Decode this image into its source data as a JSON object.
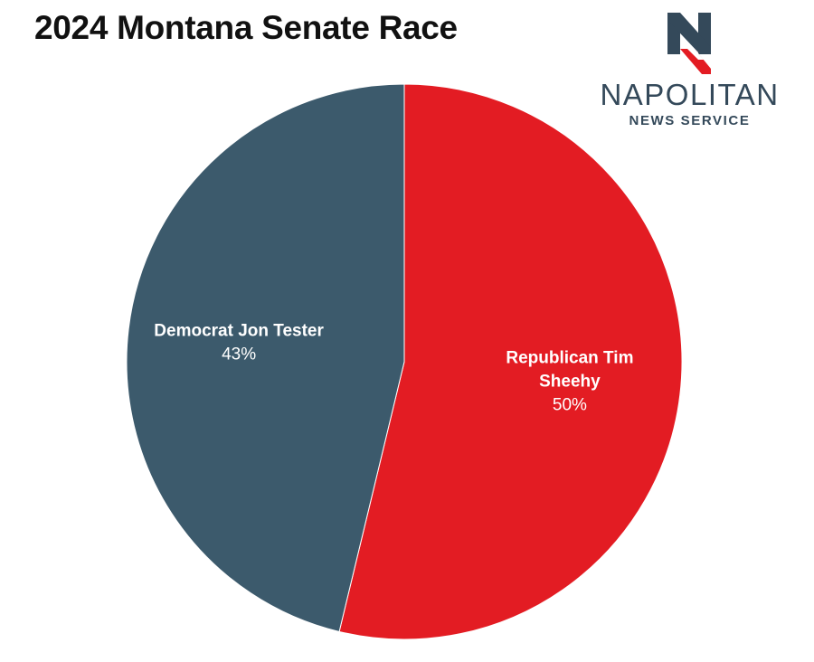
{
  "chart_data": {
    "type": "pie",
    "title": "2024 Montana Senate Race",
    "slices": [
      {
        "label_lines": [
          "Republican Tim",
          "Sheehy"
        ],
        "value": 50,
        "value_label": "50%",
        "color": "#e31c23"
      },
      {
        "label_lines": [
          "Democrat Jon Tester"
        ],
        "value": 43,
        "value_label": "43%",
        "color": "#3c5a6c"
      }
    ]
  },
  "logo": {
    "name": "NAPOLITAN",
    "subtitle": "NEWS SERVICE",
    "colors": {
      "primary": "#34495a",
      "accent": "#e31c23"
    }
  }
}
